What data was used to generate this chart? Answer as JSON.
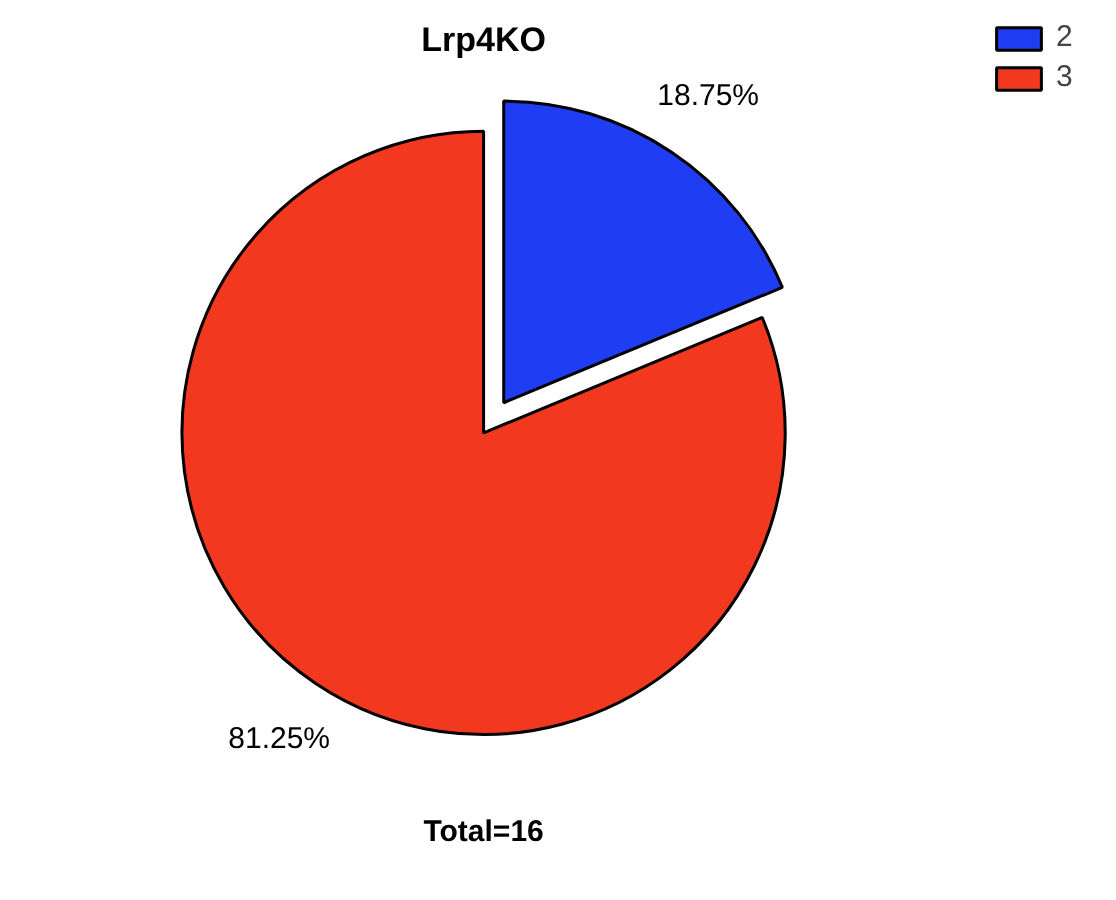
{
  "chart_data": {
    "type": "pie",
    "title": "Lrp4KO",
    "categories": [
      "2",
      "3"
    ],
    "values": [
      18.75,
      81.25
    ],
    "colors": [
      "#1f3df2",
      "#f2381e"
    ],
    "value_labels": [
      "18.75%",
      "81.25%"
    ],
    "legend": "top right",
    "annotations": [
      "Total=16"
    ]
  }
}
